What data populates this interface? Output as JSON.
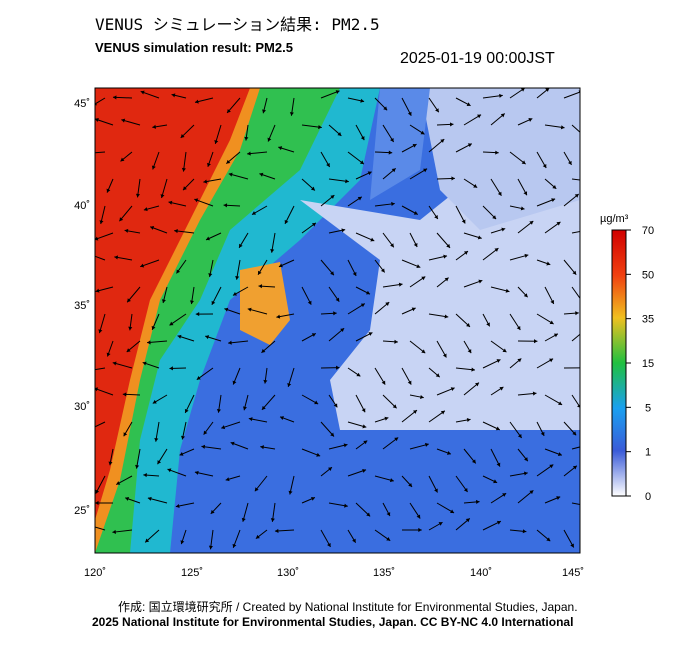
{
  "header": {
    "title_ja": "VENUS シミュレーション結果: PM2.5",
    "title_en": "VENUS simulation result: PM2.5",
    "datetime": "2025-01-19 00:00JST"
  },
  "map": {
    "lat_labels": [
      "45˚",
      "40˚",
      "35˚",
      "30˚",
      "25˚"
    ],
    "lon_labels": [
      "120˚",
      "125˚",
      "130˚",
      "135˚",
      "140˚",
      "145˚"
    ]
  },
  "colorbar": {
    "unit": "µg/m³",
    "ticks": [
      70,
      50,
      35,
      15,
      5,
      1,
      0
    ]
  },
  "footer": {
    "credit": "作成: 国立環境研究所 / Created by National Institute for Environmental Studies, Japan.",
    "license": "2025 National Institute for Environmental Studies, Japan. CC BY-NC 4.0 International"
  }
}
